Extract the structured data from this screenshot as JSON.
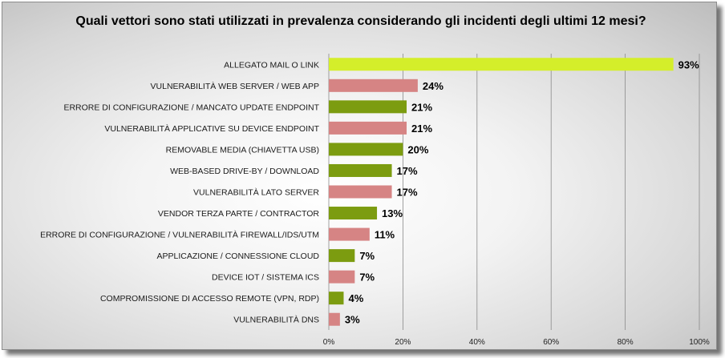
{
  "chart_data": {
    "type": "bar",
    "orientation": "horizontal",
    "title": "Quali vettori sono stati utilizzati in prevalenza considerando  gli incidenti degli ultimi 12 mesi?",
    "categories": [
      "ALLEGATO MAIL O LINK",
      "VULNERABILITÀ WEB SERVER / WEB APP",
      "ERRORE DI CONFIGURAZIONE / MANCATO UPDATE ENDPOINT",
      "VULNERABILITÀ APPLICATIVE SU DEVICE ENDPOINT",
      "REMOVABLE MEDIA (CHIAVETTA USB)",
      "WEB-BASED DRIVE-BY / DOWNLOAD",
      "VULNERABILITÀ LATO SERVER",
      "VENDOR TERZA PARTE / CONTRACTOR",
      "ERRORE DI CONFIGURAZIONE / VULNERABILITÀ FIREWALL/IDS/UTM",
      "APPLICAZIONE / CONNESSIONE CLOUD",
      "DEVICE IOT / SISTEMA ICS",
      "COMPROMISSIONE DI ACCESSO REMOTE (VPN, RDP)",
      "VULNERABILITÀ DNS"
    ],
    "values": [
      93,
      24,
      21,
      21,
      20,
      17,
      17,
      13,
      11,
      7,
      7,
      4,
      3
    ],
    "value_labels": [
      "93%",
      "24%",
      "21%",
      "21%",
      "20%",
      "17%",
      "17%",
      "13%",
      "11%",
      "7%",
      "7%",
      "4%",
      "3%"
    ],
    "bar_colors": [
      "#d4ee2a",
      "#d68484",
      "#7c9c10",
      "#d68484",
      "#7c9c10",
      "#7c9c10",
      "#d68484",
      "#7c9c10",
      "#d68484",
      "#7c9c10",
      "#d68484",
      "#7c9c10",
      "#d68484"
    ],
    "xlim": [
      0,
      100
    ],
    "xticks": [
      0,
      20,
      40,
      60,
      80,
      100
    ],
    "xtick_labels": [
      "0%",
      "20%",
      "40%",
      "60%",
      "80%",
      "100%"
    ],
    "grid": "vertical",
    "legend": "none"
  }
}
